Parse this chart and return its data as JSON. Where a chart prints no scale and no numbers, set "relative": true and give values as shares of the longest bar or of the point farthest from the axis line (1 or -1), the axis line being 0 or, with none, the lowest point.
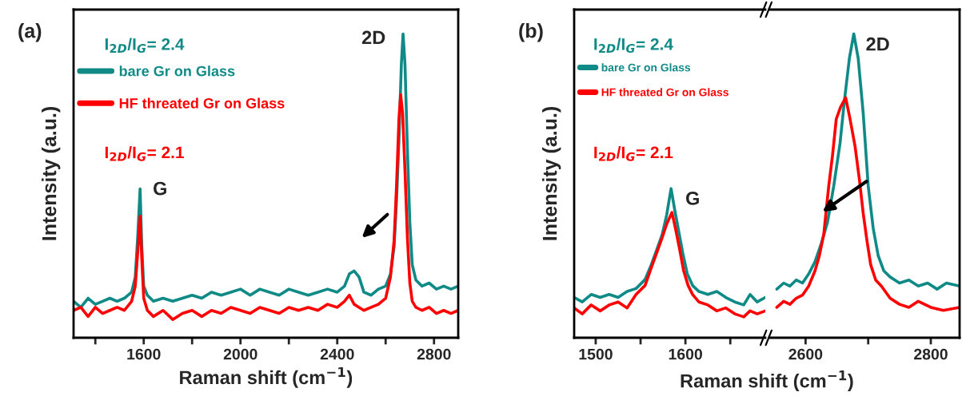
{
  "chart_data": [
    {
      "type": "line",
      "title": "(a)",
      "xlabel": "Raman shift (cm$^{−1}$)",
      "ylabel": "Intensity (a.u.)",
      "relative": true,
      "xlim": [
        1310,
        2900
      ],
      "xticks": [
        {
          "value": 1400,
          "label": null
        },
        1600,
        {
          "value": 1800,
          "label": null
        },
        2000,
        {
          "value": 2200,
          "label": null
        },
        2400,
        {
          "value": 2600,
          "label": null
        },
        2800
      ],
      "legend": "top left",
      "annotations": [
        "I$_{2D}$/I$_{G}$= 2.4",
        "I$_{2D}$/I$_{G}$= 2.1",
        "G",
        "2D"
      ],
      "series": [
        {
          "name": "bare Gr on Glass",
          "color": "#0f8a87",
          "x": [
            1310,
            1340,
            1370,
            1400,
            1430,
            1460,
            1490,
            1520,
            1550,
            1565,
            1575,
            1585,
            1592,
            1600,
            1615,
            1640,
            1680,
            1720,
            1760,
            1800,
            1840,
            1880,
            1920,
            1960,
            2000,
            2040,
            2080,
            2120,
            2160,
            2200,
            2240,
            2280,
            2320,
            2360,
            2400,
            2430,
            2450,
            2470,
            2490,
            2510,
            2540,
            2570,
            2600,
            2620,
            2635,
            2645,
            2655,
            2665,
            2672,
            2680,
            2690,
            2700,
            2710,
            2725,
            2750,
            2780,
            2810,
            2840,
            2870,
            2900
          ],
          "values": [
            0.12,
            0.1,
            0.13,
            0.11,
            0.12,
            0.13,
            0.12,
            0.13,
            0.15,
            0.2,
            0.33,
            0.49,
            0.3,
            0.17,
            0.14,
            0.12,
            0.13,
            0.12,
            0.13,
            0.14,
            0.13,
            0.15,
            0.14,
            0.15,
            0.16,
            0.14,
            0.16,
            0.15,
            0.14,
            0.16,
            0.15,
            0.14,
            0.15,
            0.16,
            0.15,
            0.17,
            0.21,
            0.22,
            0.2,
            0.15,
            0.14,
            0.16,
            0.17,
            0.21,
            0.3,
            0.45,
            0.65,
            0.9,
            1.0,
            0.9,
            0.62,
            0.38,
            0.24,
            0.19,
            0.17,
            0.18,
            0.16,
            0.17,
            0.16,
            0.17
          ]
        },
        {
          "name": "HF threated Gr on Glass",
          "color": "#ff0000",
          "x": [
            1310,
            1340,
            1370,
            1400,
            1430,
            1460,
            1490,
            1520,
            1550,
            1565,
            1575,
            1585,
            1592,
            1600,
            1615,
            1640,
            1680,
            1720,
            1760,
            1800,
            1840,
            1880,
            1920,
            1960,
            2000,
            2040,
            2080,
            2120,
            2160,
            2200,
            2240,
            2280,
            2320,
            2360,
            2400,
            2430,
            2450,
            2470,
            2490,
            2510,
            2540,
            2570,
            2600,
            2620,
            2635,
            2645,
            2655,
            2662,
            2670,
            2680,
            2690,
            2700,
            2710,
            2725,
            2750,
            2780,
            2810,
            2840,
            2870,
            2900
          ],
          "values": [
            0.09,
            0.1,
            0.07,
            0.1,
            0.08,
            0.09,
            0.1,
            0.09,
            0.12,
            0.17,
            0.28,
            0.4,
            0.26,
            0.13,
            0.09,
            0.07,
            0.09,
            0.06,
            0.08,
            0.09,
            0.07,
            0.09,
            0.08,
            0.1,
            0.09,
            0.08,
            0.1,
            0.09,
            0.08,
            0.1,
            0.09,
            0.1,
            0.09,
            0.11,
            0.1,
            0.12,
            0.14,
            0.11,
            0.1,
            0.09,
            0.1,
            0.11,
            0.13,
            0.2,
            0.32,
            0.5,
            0.72,
            0.8,
            0.74,
            0.55,
            0.33,
            0.18,
            0.12,
            0.1,
            0.09,
            0.1,
            0.08,
            0.09,
            0.08,
            0.09
          ]
        }
      ]
    },
    {
      "type": "line",
      "title": "(b)",
      "xlabel": "Raman shift (cm$^{−1}$)",
      "ylabel": "Intensity (a.u.)",
      "relative": true,
      "xlim": [
        1476,
        1689
      ],
      "xticks": [
        1500,
        {
          "value": 1550,
          "label": null
        },
        1600,
        {
          "value": 1650,
          "label": null
        }
      ],
      "legend": "top left",
      "annotations": [
        "I$_{2D}$/I$_{G}$= 2.4",
        "I$_{2D}$/I$_{G}$= 2.1",
        "G"
      ],
      "series": [
        {
          "name": "bare Gr on Glass",
          "color": "#0f8a87",
          "x": [
            1476,
            1485,
            1495,
            1505,
            1515,
            1525,
            1535,
            1545,
            1555,
            1562,
            1568,
            1574,
            1579,
            1584,
            1588,
            1592,
            1597,
            1602,
            1608,
            1615,
            1625,
            1635,
            1645,
            1655,
            1665,
            1672,
            1680,
            1689
          ],
          "values": [
            0.27,
            0.24,
            0.29,
            0.27,
            0.29,
            0.27,
            0.31,
            0.33,
            0.39,
            0.49,
            0.59,
            0.69,
            0.82,
            1.0,
            0.86,
            0.73,
            0.57,
            0.43,
            0.35,
            0.31,
            0.29,
            0.31,
            0.27,
            0.24,
            0.22,
            0.29,
            0.24,
            0.27
          ]
        },
        {
          "name": "HF threated Gr on Glass",
          "color": "#ff0000",
          "x": [
            1476,
            1485,
            1495,
            1505,
            1515,
            1525,
            1535,
            1545,
            1555,
            1562,
            1568,
            1574,
            1579,
            1585,
            1589,
            1593,
            1598,
            1603,
            1608,
            1615,
            1625,
            1635,
            1645,
            1655,
            1665,
            1672,
            1680,
            1689
          ],
          "values": [
            0.2,
            0.16,
            0.22,
            0.18,
            0.22,
            0.24,
            0.2,
            0.29,
            0.35,
            0.47,
            0.57,
            0.67,
            0.76,
            0.84,
            0.73,
            0.61,
            0.45,
            0.35,
            0.29,
            0.24,
            0.22,
            0.18,
            0.2,
            0.16,
            0.14,
            0.18,
            0.16,
            0.18
          ]
        }
      ]
    },
    {
      "type": "line",
      "relative": true,
      "xlim": [
        2542,
        2846
      ],
      "xticks": [
        2600,
        {
          "value": 2700,
          "label": null
        },
        2800
      ],
      "annotations": [
        "2D"
      ],
      "series": [
        {
          "color": "#0f8a87",
          "x": [
            2554,
            2565,
            2575,
            2585,
            2595,
            2605,
            2615,
            2625,
            2635,
            2645,
            2655,
            2662,
            2670,
            2677,
            2684,
            2692,
            2700,
            2708,
            2716,
            2725,
            2735,
            2750,
            2765,
            2780,
            2795,
            2810,
            2825,
            2846
          ],
          "values": [
            0.16,
            0.18,
            0.17,
            0.19,
            0.18,
            0.21,
            0.25,
            0.31,
            0.38,
            0.5,
            0.64,
            0.78,
            0.92,
            1.0,
            0.92,
            0.74,
            0.5,
            0.36,
            0.27,
            0.22,
            0.2,
            0.18,
            0.19,
            0.17,
            0.18,
            0.16,
            0.18,
            0.17
          ]
        },
        {
          "color": "#ff0000",
          "x": [
            2554,
            2565,
            2575,
            2585,
            2595,
            2605,
            2615,
            2622,
            2629,
            2637,
            2643,
            2649,
            2656,
            2664,
            2671,
            2679,
            2686,
            2692,
            2698,
            2704,
            2712,
            2721,
            2735,
            2750,
            2765,
            2780,
            2800,
            2820,
            2846
          ],
          "values": [
            0.1,
            0.12,
            0.11,
            0.13,
            0.14,
            0.17,
            0.22,
            0.27,
            0.34,
            0.5,
            0.6,
            0.72,
            0.76,
            0.79,
            0.72,
            0.63,
            0.52,
            0.41,
            0.32,
            0.24,
            0.19,
            0.17,
            0.13,
            0.11,
            0.1,
            0.12,
            0.1,
            0.09,
            0.1
          ]
        }
      ]
    }
  ]
}
